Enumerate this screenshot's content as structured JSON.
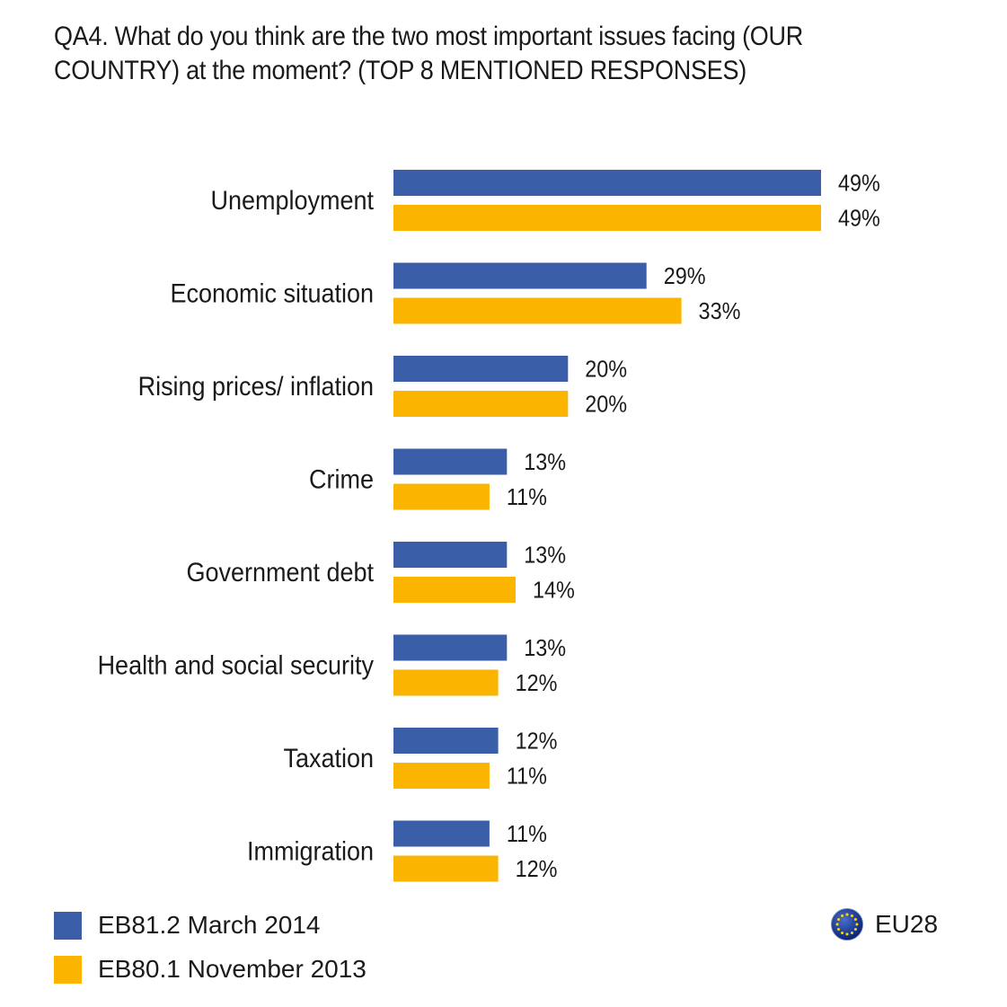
{
  "title": "QA4. What do you think are the two most important issues facing (OUR COUNTRY) at the moment? (TOP 8 MENTIONED RESPONSES)",
  "colors": {
    "series1": "#3a5ea8",
    "series2": "#fbb400"
  },
  "region_label": "EU28",
  "region_icon": "eu-flag-icon",
  "chart_data": {
    "type": "bar",
    "orientation": "horizontal",
    "categories": [
      "Unemployment",
      "Economic situation",
      "Rising prices/ inflation",
      "Crime",
      "Government debt",
      "Health and social security",
      "Taxation",
      "Immigration"
    ],
    "series": [
      {
        "name": "EB81.2 March 2014",
        "values": [
          49,
          29,
          20,
          13,
          13,
          13,
          12,
          11
        ],
        "labels": [
          "49%",
          "29%",
          "20%",
          "13%",
          "13%",
          "13%",
          "12%",
          "11%"
        ]
      },
      {
        "name": "EB80.1 November 2013",
        "values": [
          49,
          33,
          20,
          11,
          14,
          12,
          11,
          12
        ],
        "labels": [
          "49%",
          "33%",
          "20%",
          "11%",
          "14%",
          "12%",
          "11%",
          "12%"
        ]
      }
    ],
    "xlim": [
      0,
      49
    ],
    "grid": false,
    "legend_position": "bottom-left"
  }
}
